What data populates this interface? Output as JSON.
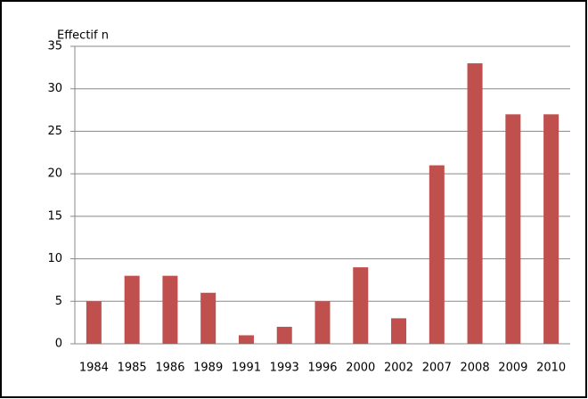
{
  "chart_data": {
    "type": "bar",
    "y_label": "Effectif n",
    "categories": [
      "1984",
      "1985",
      "1986",
      "1989",
      "1991",
      "1993",
      "1996",
      "2000",
      "2002",
      "2007",
      "2008",
      "2009",
      "2010"
    ],
    "values": [
      5,
      8,
      8,
      6,
      1,
      2,
      5,
      9,
      3,
      21,
      33,
      27,
      27
    ],
    "color": "#c0504d",
    "ylim": [
      0,
      35
    ],
    "yticks": [
      0,
      5,
      10,
      15,
      20,
      25,
      30,
      35
    ],
    "grid": true
  }
}
